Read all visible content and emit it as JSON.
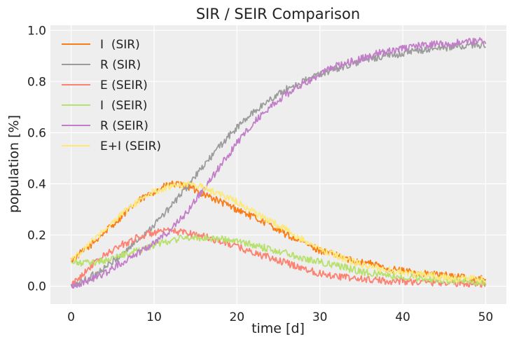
{
  "chart_data": {
    "type": "line",
    "title": "SIR / SEIR Comparison",
    "xlabel": "time [d]",
    "ylabel": "population [%]",
    "xlim": [
      -2.5,
      52.5
    ],
    "ylim": [
      -0.07,
      1.02
    ],
    "x_ticks": [
      0,
      10,
      20,
      30,
      40,
      50
    ],
    "y_ticks": [
      0.0,
      0.2,
      0.4,
      0.6,
      0.8,
      1.0
    ],
    "x_tick_labels": [
      "0",
      "10",
      "20",
      "30",
      "40",
      "50"
    ],
    "y_tick_labels": [
      "0.0",
      "0.2",
      "0.4",
      "0.6",
      "0.8",
      "1.0"
    ],
    "grid": true,
    "legend_position": "top-left",
    "background": "#eeeeee",
    "series": [
      {
        "name": "I  (SIR)",
        "color": "#fa7c17",
        "x": [
          0,
          2,
          4,
          6,
          8,
          10,
          12,
          14,
          16,
          18,
          20,
          22,
          24,
          26,
          28,
          30,
          32,
          34,
          36,
          38,
          40,
          42,
          44,
          46,
          48,
          50
        ],
        "y": [
          0.1,
          0.15,
          0.21,
          0.27,
          0.33,
          0.37,
          0.4,
          0.39,
          0.36,
          0.33,
          0.3,
          0.27,
          0.24,
          0.2,
          0.17,
          0.14,
          0.12,
          0.1,
          0.09,
          0.07,
          0.06,
          0.05,
          0.045,
          0.04,
          0.03,
          0.03
        ]
      },
      {
        "name": "R (SIR)",
        "color": "#9c9c9c",
        "x": [
          0,
          2,
          4,
          6,
          8,
          10,
          12,
          14,
          16,
          18,
          20,
          22,
          24,
          26,
          28,
          30,
          32,
          34,
          36,
          38,
          40,
          42,
          44,
          46,
          48,
          50
        ],
        "y": [
          0.0,
          0.03,
          0.07,
          0.12,
          0.18,
          0.24,
          0.31,
          0.39,
          0.47,
          0.55,
          0.62,
          0.68,
          0.73,
          0.77,
          0.8,
          0.83,
          0.85,
          0.87,
          0.89,
          0.9,
          0.91,
          0.92,
          0.93,
          0.935,
          0.94,
          0.945
        ]
      },
      {
        "name": "E (SEIR)",
        "color": "#fc8170",
        "x": [
          0,
          2,
          4,
          6,
          8,
          10,
          12,
          14,
          16,
          18,
          20,
          22,
          24,
          26,
          28,
          30,
          32,
          34,
          36,
          38,
          40,
          42,
          44,
          46,
          48,
          50
        ],
        "y": [
          0.0,
          0.07,
          0.12,
          0.16,
          0.19,
          0.21,
          0.215,
          0.21,
          0.195,
          0.175,
          0.155,
          0.13,
          0.11,
          0.09,
          0.07,
          0.05,
          0.04,
          0.03,
          0.025,
          0.02,
          0.02,
          0.015,
          0.015,
          0.012,
          0.01,
          0.01
        ]
      },
      {
        "name": "I  (SEIR)",
        "color": "#b7e06c",
        "x": [
          0,
          2,
          4,
          6,
          8,
          10,
          12,
          14,
          16,
          18,
          20,
          22,
          24,
          26,
          28,
          30,
          32,
          34,
          36,
          38,
          40,
          42,
          44,
          46,
          48,
          50
        ],
        "y": [
          0.09,
          0.09,
          0.1,
          0.12,
          0.14,
          0.16,
          0.18,
          0.19,
          0.19,
          0.185,
          0.175,
          0.16,
          0.145,
          0.13,
          0.11,
          0.095,
          0.08,
          0.065,
          0.05,
          0.045,
          0.035,
          0.03,
          0.025,
          0.02,
          0.02,
          0.015
        ]
      },
      {
        "name": "R (SEIR)",
        "color": "#c27ec8",
        "x": [
          0,
          2,
          4,
          6,
          8,
          10,
          12,
          14,
          16,
          18,
          20,
          22,
          24,
          26,
          28,
          30,
          32,
          34,
          36,
          38,
          40,
          42,
          44,
          46,
          48,
          50
        ],
        "y": [
          0.0,
          0.02,
          0.05,
          0.09,
          0.13,
          0.17,
          0.22,
          0.29,
          0.38,
          0.47,
          0.56,
          0.64,
          0.7,
          0.75,
          0.79,
          0.83,
          0.86,
          0.88,
          0.9,
          0.92,
          0.93,
          0.94,
          0.945,
          0.95,
          0.955,
          0.96
        ]
      },
      {
        "name": "E+I (SEIR)",
        "color": "#fde97a",
        "x": [
          0,
          2,
          4,
          6,
          8,
          10,
          12,
          14,
          16,
          18,
          20,
          22,
          24,
          26,
          28,
          30,
          32,
          34,
          36,
          38,
          40,
          42,
          44,
          46,
          48,
          50
        ],
        "y": [
          0.1,
          0.16,
          0.22,
          0.28,
          0.33,
          0.37,
          0.39,
          0.4,
          0.385,
          0.36,
          0.33,
          0.29,
          0.255,
          0.22,
          0.18,
          0.145,
          0.12,
          0.095,
          0.075,
          0.065,
          0.055,
          0.045,
          0.04,
          0.03,
          0.03,
          0.025
        ]
      }
    ]
  }
}
